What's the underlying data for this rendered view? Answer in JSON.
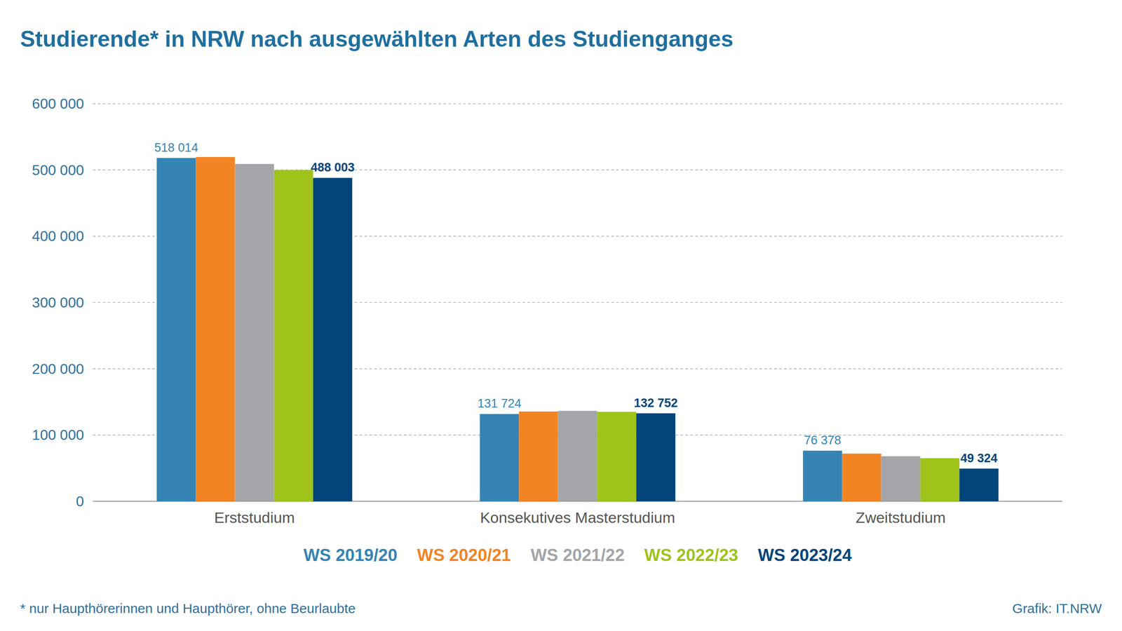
{
  "chart_data": {
    "type": "bar",
    "title": "Studierende* in NRW nach ausgewählten Arten des Studienganges",
    "footnote": "* nur Haupthörerinnen und Haupthörer, ohne Beurlaubte",
    "source": "Grafik: IT.NRW",
    "categories": [
      "Erststudium",
      "Konsekutives Masterstudium",
      "Zweitstudium"
    ],
    "series": [
      {
        "name": "WS 2019/20",
        "color": "#3584b3",
        "values": [
          518014,
          131724,
          76378
        ],
        "value_labels": [
          "518 014",
          "131 724",
          "76 378"
        ]
      },
      {
        "name": "WS 2020/21",
        "color": "#f28423",
        "values": [
          519500,
          135500,
          72000
        ]
      },
      {
        "name": "WS 2021/22",
        "color": "#a3a5a8",
        "values": [
          509000,
          136500,
          68000
        ]
      },
      {
        "name": "WS 2022/23",
        "color": "#9fc31a",
        "values": [
          500000,
          135000,
          65000
        ]
      },
      {
        "name": "WS 2023/24",
        "color": "#02457a",
        "values": [
          488003,
          132752,
          49324
        ],
        "value_labels": [
          "488 003",
          "132 752",
          "49 324"
        ]
      }
    ],
    "ylim": [
      0,
      600000
    ],
    "yticks": [
      0,
      {
        "value": 100000,
        "label": "100 000"
      },
      {
        "value": 200000,
        "label": "200 000"
      },
      {
        "value": 300000,
        "label": "300 000"
      },
      {
        "value": 400000,
        "label": "400 000"
      },
      {
        "value": 500000,
        "label": "500 000"
      },
      {
        "value": 600000,
        "label": "600 000"
      }
    ],
    "grid": true,
    "data_labels": true,
    "legend": "bottom"
  }
}
